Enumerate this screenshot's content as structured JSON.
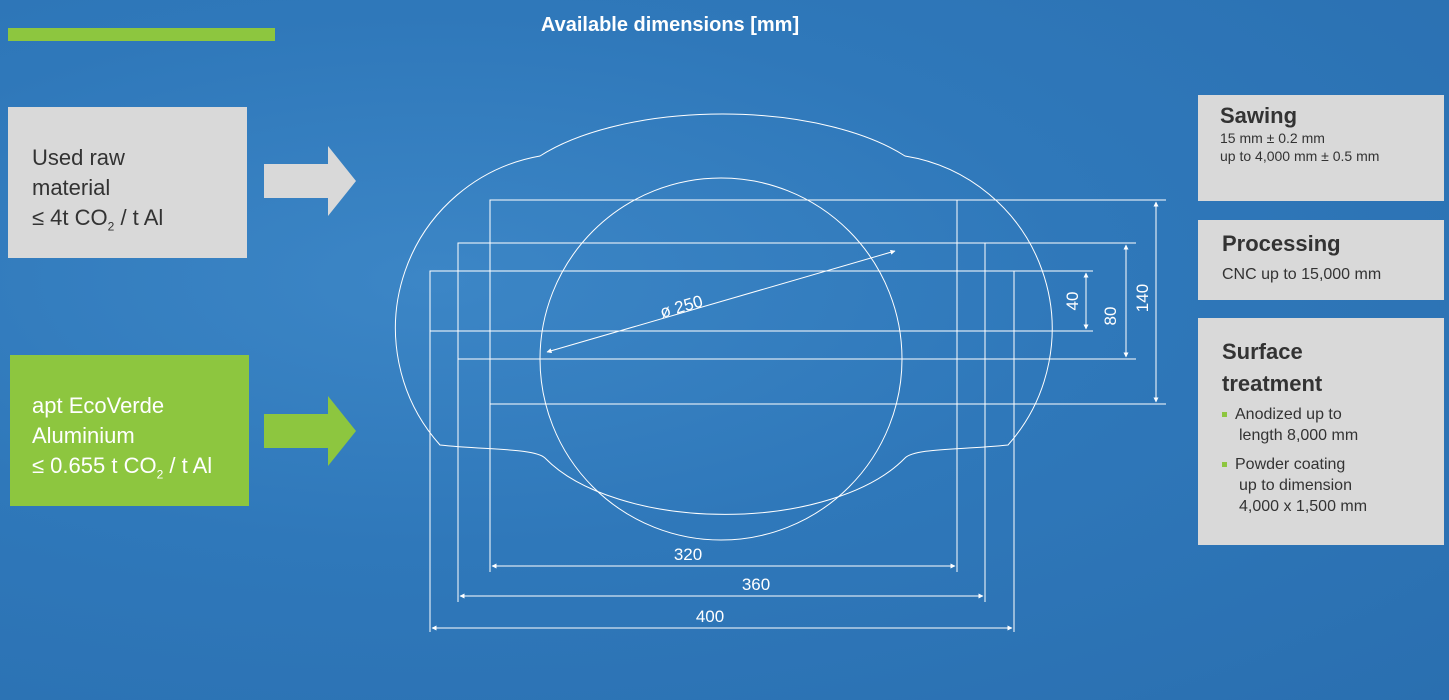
{
  "title": "Available dimensions [mm]",
  "raw_material": {
    "lines": [
      "Used raw",
      "material"
    ],
    "emission_prefix": "≤ 4t CO",
    "emission_sub": "2",
    "emission_suffix": " / t Al"
  },
  "ecoverde": {
    "lines": [
      "apt EcoVerde",
      "Aluminium"
    ],
    "emission_prefix": "≤ 0.655 t CO",
    "emission_sub": "2",
    "emission_suffix": " / t Al"
  },
  "dimensions": {
    "diameter": "ø 250",
    "width_320": "320",
    "width_360": "360",
    "width_400": "400",
    "height_40": "40",
    "height_80": "80",
    "height_140": "140"
  },
  "sawing": {
    "heading": "Sawing",
    "line1": "15 mm ± 0.2 mm",
    "line2": "up to 4,000 mm ± 0.5 mm"
  },
  "processing": {
    "heading": "Processing",
    "line1": "CNC up to 15,000 mm"
  },
  "surface": {
    "heading_line1": "Surface",
    "heading_line2": "treatment",
    "items": [
      {
        "line1": "Anodized up to",
        "line2": "length 8,000 mm"
      },
      {
        "line1": "Powder coating",
        "line2": "up to dimension",
        "line3": "4,000 x 1,500 mm"
      }
    ]
  },
  "colors": {
    "accent_green": "#8dc63f",
    "panel_gray": "#d9d9d9",
    "background_blue": "#2f78ba"
  }
}
